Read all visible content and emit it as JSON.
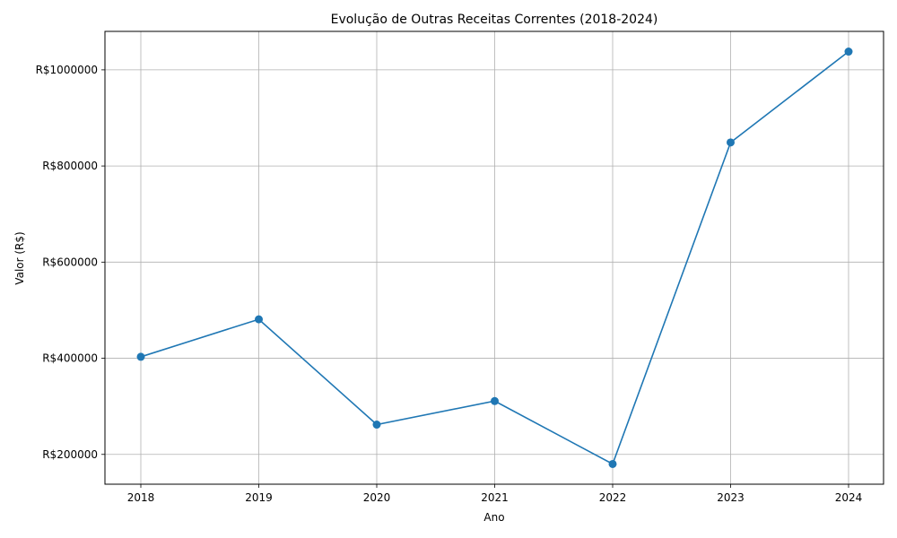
{
  "chart_data": {
    "type": "line",
    "title": "Evolução de Outras Receitas Correntes (2018-2024)",
    "xlabel": "Ano",
    "ylabel": "Valor (R$)",
    "x": [
      "2018",
      "2019",
      "2020",
      "2021",
      "2022",
      "2023",
      "2024"
    ],
    "series": [
      {
        "values": [
          403000,
          481000,
          262000,
          311000,
          180000,
          849000,
          1038000
        ]
      }
    ],
    "yticks": [
      200000,
      400000,
      600000,
      800000,
      1000000
    ],
    "ytick_labels": [
      "R$200000",
      "R$400000",
      "R$600000",
      "R$800000",
      "R$1000000"
    ],
    "ylim": [
      138000,
      1080000
    ],
    "grid": true,
    "color": "#1f77b4"
  }
}
